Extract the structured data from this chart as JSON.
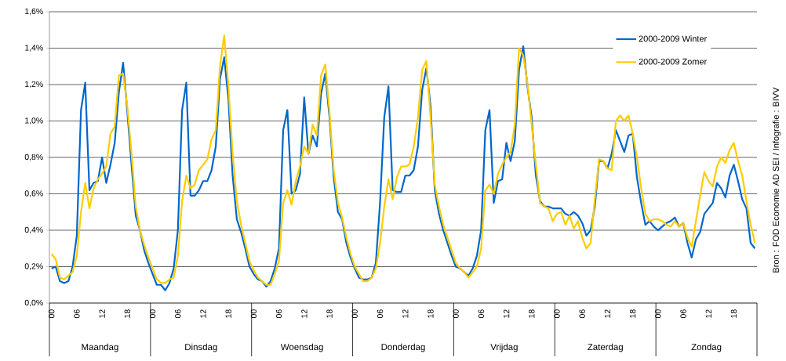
{
  "chart_data": {
    "type": "line",
    "categories": [
      "00",
      null,
      null,
      null,
      null,
      null,
      "06",
      null,
      null,
      null,
      null,
      null,
      "12",
      null,
      null,
      null,
      null,
      null,
      "18",
      null,
      null,
      null,
      null,
      null,
      "00",
      null,
      null,
      null,
      null,
      null,
      "06",
      null,
      null,
      null,
      null,
      null,
      "12",
      null,
      null,
      null,
      null,
      null,
      "18",
      null,
      null,
      null,
      null,
      null,
      "00",
      null,
      null,
      null,
      null,
      null,
      "06",
      null,
      null,
      null,
      null,
      null,
      "12",
      null,
      null,
      null,
      null,
      null,
      "18",
      null,
      null,
      null,
      null,
      null,
      "00",
      null,
      null,
      null,
      null,
      null,
      "06",
      null,
      null,
      null,
      null,
      null,
      "12",
      null,
      null,
      null,
      null,
      null,
      "18",
      null,
      null,
      null,
      null,
      null,
      "00",
      null,
      null,
      null,
      null,
      null,
      "06",
      null,
      null,
      null,
      null,
      null,
      "12",
      null,
      null,
      null,
      null,
      null,
      "18",
      null,
      null,
      null,
      null,
      null,
      "00",
      null,
      null,
      null,
      null,
      null,
      "06",
      null,
      null,
      null,
      null,
      null,
      "12",
      null,
      null,
      null,
      null,
      null,
      "18",
      null,
      null,
      null,
      null,
      null,
      "00",
      null,
      null,
      null,
      null,
      null,
      "06",
      null,
      null,
      null,
      null,
      null,
      "12",
      null,
      null,
      null,
      null,
      null,
      "18",
      null,
      null,
      null,
      null,
      null
    ],
    "series": [
      {
        "name": "2000-2009 Winter",
        "color": "#0066cc",
        "values": [
          0.19,
          0.2,
          0.12,
          0.11,
          0.12,
          0.2,
          0.37,
          1.06,
          1.21,
          0.62,
          0.66,
          0.67,
          0.8,
          0.66,
          0.76,
          0.88,
          1.16,
          1.32,
          1.05,
          0.76,
          0.48,
          0.4,
          0.29,
          0.22,
          0.16,
          0.1,
          0.1,
          0.07,
          0.11,
          0.19,
          0.4,
          1.06,
          1.21,
          0.59,
          0.59,
          0.62,
          0.67,
          0.67,
          0.73,
          0.86,
          1.23,
          1.35,
          1.12,
          0.7,
          0.46,
          0.39,
          0.3,
          0.2,
          0.16,
          0.13,
          0.12,
          0.09,
          0.12,
          0.19,
          0.3,
          0.95,
          1.06,
          0.6,
          0.62,
          0.71,
          1.13,
          0.82,
          0.92,
          0.86,
          1.15,
          1.26,
          1.02,
          0.69,
          0.5,
          0.46,
          0.33,
          0.25,
          0.19,
          0.14,
          0.13,
          0.13,
          0.14,
          0.22,
          0.55,
          1.02,
          1.19,
          0.62,
          0.61,
          0.61,
          0.7,
          0.7,
          0.73,
          0.86,
          1.17,
          1.29,
          1.08,
          0.62,
          0.49,
          0.4,
          0.33,
          0.26,
          0.2,
          0.19,
          0.17,
          0.15,
          0.19,
          0.26,
          0.4,
          0.95,
          1.06,
          0.55,
          0.67,
          0.68,
          0.88,
          0.78,
          0.89,
          1.28,
          1.41,
          1.19,
          1.02,
          0.7,
          0.56,
          0.53,
          0.53,
          0.52,
          0.52,
          0.52,
          0.49,
          0.48,
          0.5,
          0.48,
          0.44,
          0.37,
          0.4,
          0.53,
          0.78,
          0.78,
          0.74,
          0.82,
          0.95,
          0.89,
          0.83,
          0.92,
          0.93,
          0.69,
          0.55,
          0.43,
          0.45,
          0.42,
          0.4,
          0.42,
          0.44,
          0.45,
          0.47,
          0.42,
          0.44,
          0.33,
          0.25,
          0.35,
          0.39,
          0.49,
          0.52,
          0.55,
          0.66,
          0.63,
          0.58,
          0.7,
          0.76,
          0.67,
          0.57,
          0.52,
          0.33,
          0.3
        ]
      },
      {
        "name": "2000-2009 Zomer",
        "color": "#ffcc00",
        "values": [
          0.27,
          0.24,
          0.14,
          0.13,
          0.15,
          0.17,
          0.26,
          0.5,
          0.66,
          0.52,
          0.63,
          0.68,
          0.71,
          0.75,
          0.93,
          0.97,
          1.25,
          1.26,
          1.08,
          0.82,
          0.53,
          0.4,
          0.32,
          0.25,
          0.19,
          0.13,
          0.11,
          0.11,
          0.13,
          0.14,
          0.26,
          0.56,
          0.7,
          0.63,
          0.65,
          0.73,
          0.76,
          0.79,
          0.9,
          0.95,
          1.3,
          1.47,
          1.19,
          0.82,
          0.56,
          0.43,
          0.33,
          0.23,
          0.18,
          0.14,
          0.12,
          0.1,
          0.1,
          0.16,
          0.23,
          0.55,
          0.62,
          0.54,
          0.67,
          0.75,
          0.86,
          0.82,
          0.98,
          0.92,
          1.25,
          1.31,
          1.05,
          0.73,
          0.55,
          0.47,
          0.36,
          0.27,
          0.2,
          0.16,
          0.12,
          0.12,
          0.14,
          0.19,
          0.33,
          0.53,
          0.68,
          0.57,
          0.69,
          0.75,
          0.75,
          0.76,
          0.86,
          1.02,
          1.28,
          1.33,
          1.02,
          0.65,
          0.53,
          0.43,
          0.36,
          0.29,
          0.22,
          0.19,
          0.17,
          0.14,
          0.17,
          0.2,
          0.3,
          0.62,
          0.65,
          0.6,
          0.71,
          0.76,
          0.8,
          0.83,
          0.98,
          1.4,
          1.36,
          1.21,
          0.98,
          0.76,
          0.55,
          0.53,
          0.52,
          0.45,
          0.49,
          0.5,
          0.43,
          0.48,
          0.41,
          0.45,
          0.36,
          0.3,
          0.33,
          0.57,
          0.79,
          0.78,
          0.74,
          0.73,
          1.0,
          1.03,
          1.0,
          1.03,
          0.93,
          0.8,
          0.63,
          0.49,
          0.45,
          0.46,
          0.46,
          0.45,
          0.43,
          0.42,
          0.45,
          0.42,
          0.44,
          0.36,
          0.31,
          0.45,
          0.59,
          0.72,
          0.67,
          0.64,
          0.75,
          0.8,
          0.77,
          0.84,
          0.88,
          0.78,
          0.7,
          0.56,
          0.43,
          0.33
        ]
      }
    ],
    "ylim": [
      0,
      1.6
    ],
    "yticks": [
      {
        "value": 0,
        "label": "0,0%"
      },
      {
        "value": 0.2,
        "label": "0,2%"
      },
      {
        "value": 0.4,
        "label": "0,4%"
      },
      {
        "value": 0.6,
        "label": "0,6%"
      },
      {
        "value": 0.8,
        "label": "0,8%"
      },
      {
        "value": 1.0,
        "label": "1,0%"
      },
      {
        "value": 1.2,
        "label": "1,2%"
      },
      {
        "value": 1.4,
        "label": "1,4%"
      },
      {
        "value": 1.6,
        "label": "1,6%"
      }
    ],
    "grid": "y",
    "legend": "top right",
    "annotations": [
      "Maandag",
      "Dinsdag",
      "Woensdag",
      "Donderdag",
      "Vrijdag",
      "Zaterdag",
      "Zondag",
      "Bron : FOD Economie AD SEI / Infografie : BIVV"
    ]
  }
}
